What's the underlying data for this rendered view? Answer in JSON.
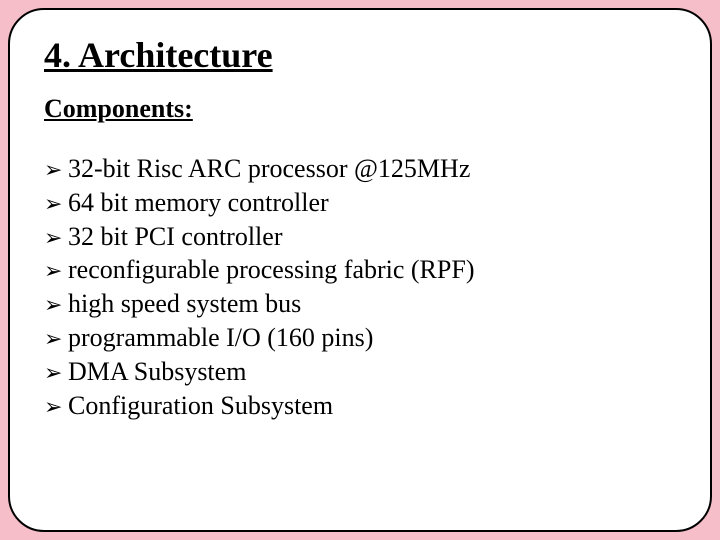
{
  "slide": {
    "title": "4. Architecture",
    "subtitle": "Components:",
    "bullet_glyph": "➢",
    "items": [
      "32-bit Risc ARC processor @125MHz",
      "64 bit memory controller",
      "32 bit PCI controller",
      "reconfigurable processing fabric (RPF)",
      "high speed system bus",
      "programmable I/O (160 pins)",
      "DMA Subsystem",
      "Configuration Subsystem"
    ],
    "colors": {
      "background": "#f5bec9",
      "card_bg": "#ffffff",
      "border": "#000000",
      "text": "#000000"
    },
    "typography": {
      "title_fontsize": 36,
      "subtitle_fontsize": 26,
      "item_fontsize": 26,
      "font_family": "Times New Roman"
    },
    "layout": {
      "card_border_radius": 36,
      "card_border_width": 2
    }
  }
}
